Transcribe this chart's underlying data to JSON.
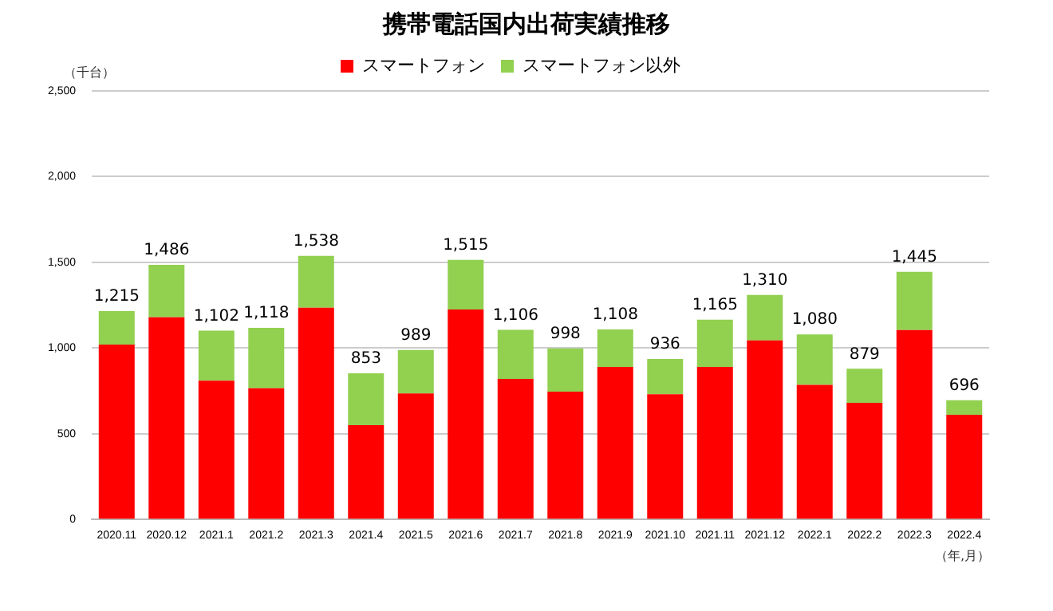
{
  "chart_data": {
    "type": "bar",
    "title": "携帯電話国内出荷実績推移",
    "ylabel": "（千台）",
    "xlabel": "（年,月）",
    "categories": [
      "2020.11",
      "2020.12",
      "2021.1",
      "2021.2",
      "2021.3",
      "2021.4",
      "2021.5",
      "2021.6",
      "2021.7",
      "2021.8",
      "2021.9",
      "2021.10",
      "2021.11",
      "2021.12",
      "2022.1",
      "2022.2",
      "2022.3",
      "2022.4"
    ],
    "stacked": true,
    "series": [
      {
        "name": "スマートフォン",
        "color": "#ff0000",
        "values": [
          1020,
          1180,
          810,
          765,
          1235,
          550,
          735,
          1225,
          820,
          745,
          890,
          730,
          890,
          1045,
          785,
          680,
          1105,
          610
        ]
      },
      {
        "name": "スマートフォン以外",
        "color": "#92d050",
        "values": [
          195,
          306,
          292,
          353,
          303,
          303,
          254,
          290,
          286,
          253,
          218,
          206,
          275,
          265,
          295,
          199,
          340,
          86
        ]
      }
    ],
    "totals": [
      "1,215",
      "1,486",
      "1,102",
      "1,118",
      "1,538",
      "853",
      "989",
      "1,515",
      "1,106",
      "998",
      "1,108",
      "936",
      "1,165",
      "1,310",
      "1,080",
      "879",
      "1,445",
      "696"
    ],
    "ylim": [
      0,
      2500
    ],
    "yticks": [
      {
        "value": 0,
        "label": "0"
      },
      {
        "value": 500,
        "label": "500"
      },
      {
        "value": 1000,
        "label": "1,000"
      },
      {
        "value": 1500,
        "label": "1,500"
      },
      {
        "value": 2000,
        "label": "2,000"
      },
      {
        "value": 2500,
        "label": "2,500"
      }
    ],
    "grid": "y",
    "legend": "top"
  }
}
